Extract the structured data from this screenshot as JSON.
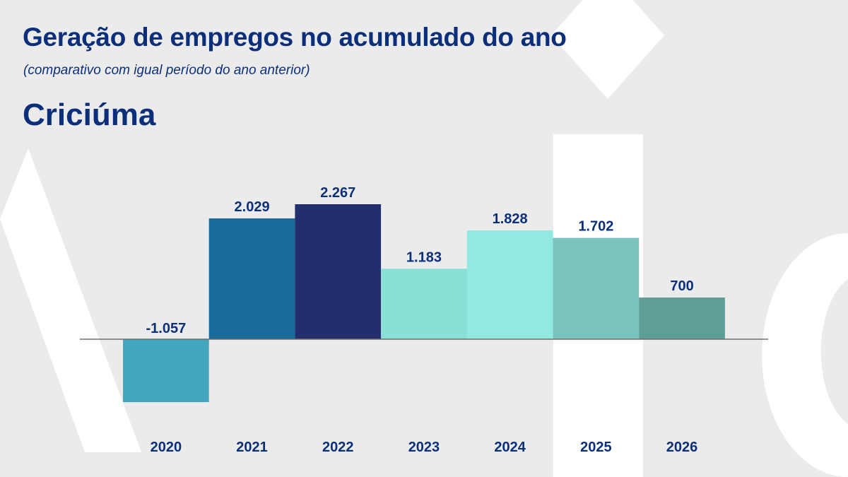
{
  "header": {
    "title": "Geração de empregos no acumulado do ano",
    "subtitle": "(comparativo com igual período do ano anterior)",
    "city": "Criciúma"
  },
  "chart_data": {
    "type": "bar",
    "categories": [
      "2020",
      "2021",
      "2022",
      "2023",
      "2024",
      "2025",
      "2026"
    ],
    "values": [
      -1057,
      2029,
      2267,
      1183,
      1828,
      1702,
      700
    ],
    "value_labels": [
      "-1.057",
      "2.029",
      "2.267",
      "1.183",
      "1.828",
      "1.702",
      "700"
    ],
    "bar_colors": [
      "#43a6bf",
      "#1a6a9c",
      "#232f6c",
      "#8adfd6",
      "#92e9e1",
      "#79c4bc",
      "#5f9e97"
    ],
    "label_color": "#0b2f7a",
    "baseline_color": "#6e6e6e",
    "grid": false,
    "legend": "none"
  }
}
